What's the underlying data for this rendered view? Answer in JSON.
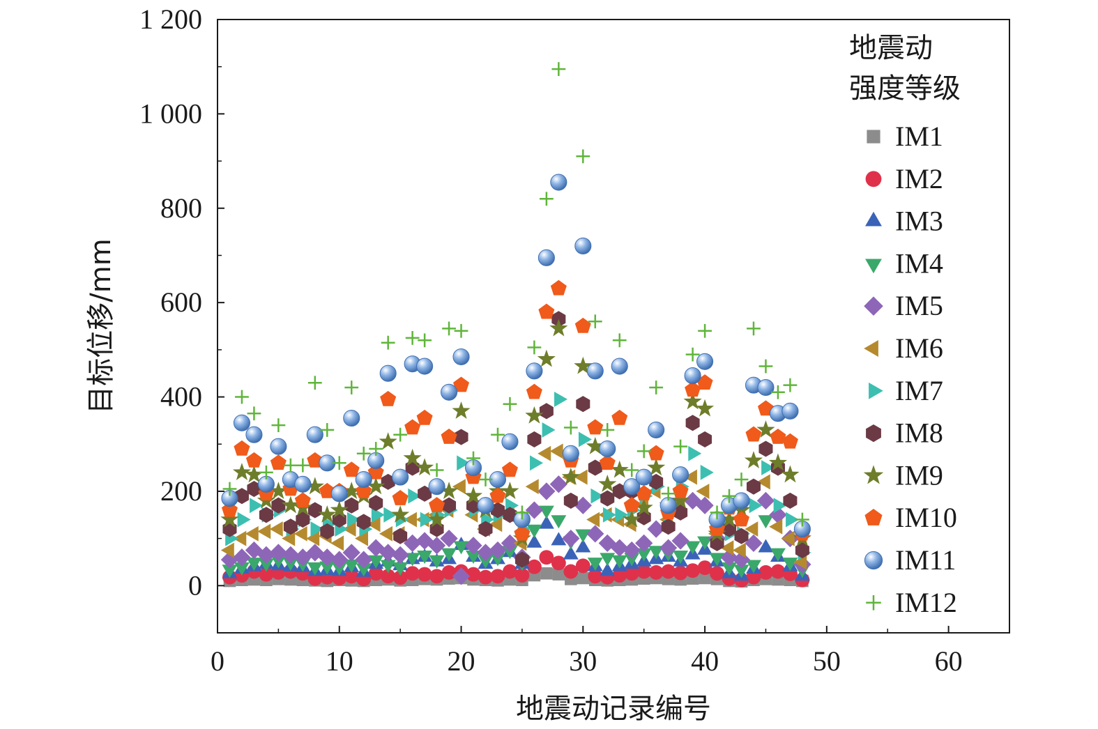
{
  "chart_data": {
    "type": "scatter",
    "title": "",
    "xlabel": "地震动记录编号",
    "ylabel": "目标位移/mm",
    "xlim": [
      0,
      65
    ],
    "ylim": [
      -100,
      1200
    ],
    "xticks": [
      0,
      10,
      20,
      30,
      40,
      50,
      60
    ],
    "yticks": [
      0,
      200,
      400,
      600,
      800,
      1000,
      1200
    ],
    "ytick_labels": [
      "0",
      "200",
      "400",
      "600",
      "800",
      "1 000",
      "1 200"
    ],
    "grid": false,
    "legend": {
      "title_lines": [
        "地震动",
        "强度等级"
      ],
      "placement": "right"
    },
    "x": [
      1,
      2,
      3,
      4,
      5,
      6,
      7,
      8,
      9,
      10,
      11,
      12,
      13,
      14,
      15,
      16,
      17,
      18,
      19,
      20,
      21,
      22,
      23,
      24,
      25,
      26,
      27,
      28,
      29,
      30,
      31,
      32,
      33,
      34,
      35,
      36,
      37,
      38,
      39,
      40,
      41,
      42,
      43,
      44,
      45,
      46,
      47,
      48
    ],
    "series": [
      {
        "name": "IM1",
        "marker": "square",
        "color": "#8c8c8c",
        "values": [
          10,
          12,
          13,
          12,
          14,
          13,
          12,
          11,
          10,
          12,
          11,
          10,
          12,
          13,
          11,
          12,
          14,
          13,
          15,
          16,
          13,
          12,
          11,
          13,
          12,
          22,
          26,
          24,
          14,
          16,
          12,
          11,
          12,
          13,
          15,
          16,
          14,
          13,
          15,
          16,
          14,
          10,
          9,
          12,
          14,
          13,
          12,
          10
        ]
      },
      {
        "name": "IM2",
        "marker": "circle",
        "color": "#e0314b",
        "values": [
          18,
          22,
          30,
          24,
          28,
          30,
          26,
          15,
          18,
          16,
          20,
          14,
          26,
          20,
          17,
          26,
          24,
          20,
          28,
          30,
          24,
          18,
          20,
          30,
          22,
          40,
          60,
          48,
          30,
          42,
          20,
          18,
          22,
          26,
          30,
          28,
          30,
          27,
          32,
          38,
          26,
          15,
          12,
          18,
          28,
          30,
          25,
          12
        ]
      },
      {
        "name": "IM3",
        "marker": "triangle-up",
        "color": "#3a63b8",
        "values": [
          25,
          35,
          40,
          45,
          42,
          40,
          38,
          30,
          32,
          30,
          38,
          28,
          45,
          50,
          42,
          55,
          60,
          50,
          55,
          85,
          60,
          45,
          55,
          70,
          45,
          90,
          130,
          95,
          65,
          80,
          40,
          30,
          40,
          45,
          50,
          55,
          60,
          50,
          65,
          75,
          50,
          25,
          20,
          35,
          80,
          60,
          40,
          20
        ]
      },
      {
        "name": "IM4",
        "marker": "triangle-down",
        "color": "#3aa86a",
        "values": [
          35,
          40,
          50,
          48,
          55,
          50,
          48,
          40,
          42,
          40,
          46,
          38,
          55,
          45,
          40,
          60,
          65,
          55,
          70,
          85,
          65,
          55,
          60,
          75,
          50,
          120,
          160,
          140,
          95,
          110,
          50,
          60,
          55,
          60,
          70,
          75,
          70,
          65,
          85,
          95,
          60,
          40,
          35,
          45,
          140,
          70,
          50,
          35
        ]
      },
      {
        "name": "IM5",
        "marker": "diamond",
        "color": "#8e66b8",
        "values": [
          55,
          60,
          75,
          65,
          70,
          65,
          60,
          70,
          60,
          55,
          70,
          55,
          80,
          70,
          65,
          90,
          95,
          85,
          100,
          20,
          85,
          70,
          75,
          90,
          60,
          160,
          200,
          215,
          100,
          170,
          110,
          90,
          80,
          75,
          90,
          120,
          80,
          95,
          180,
          170,
          100,
          60,
          55,
          90,
          180,
          150,
          100,
          45
        ]
      },
      {
        "name": "IM6",
        "marker": "triangle-left",
        "color": "#b58a2e",
        "values": [
          75,
          100,
          110,
          115,
          120,
          100,
          110,
          100,
          105,
          90,
          120,
          100,
          130,
          110,
          110,
          140,
          140,
          150,
          160,
          210,
          150,
          120,
          130,
          150,
          90,
          210,
          280,
          285,
          230,
          230,
          140,
          150,
          140,
          130,
          170,
          200,
          140,
          180,
          230,
          200,
          110,
          80,
          75,
          120,
          220,
          125,
          100,
          50
        ]
      },
      {
        "name": "IM7",
        "marker": "triangle-right",
        "color": "#3cbfb0",
        "values": [
          100,
          140,
          170,
          150,
          160,
          120,
          140,
          120,
          130,
          120,
          140,
          120,
          150,
          150,
          140,
          190,
          140,
          150,
          160,
          260,
          160,
          140,
          150,
          170,
          120,
          260,
          330,
          395,
          280,
          310,
          190,
          150,
          150,
          160,
          190,
          210,
          150,
          210,
          280,
          240,
          130,
          110,
          110,
          170,
          250,
          170,
          140,
          70
        ]
      },
      {
        "name": "IM8",
        "marker": "hexagon",
        "color": "#6b3a45",
        "values": [
          120,
          190,
          205,
          150,
          170,
          125,
          140,
          160,
          115,
          140,
          170,
          135,
          175,
          220,
          105,
          250,
          195,
          120,
          170,
          315,
          170,
          120,
          160,
          150,
          55,
          310,
          370,
          565,
          180,
          385,
          250,
          185,
          200,
          200,
          145,
          220,
          125,
          155,
          345,
          310,
          90,
          120,
          105,
          210,
          290,
          250,
          180,
          75
        ]
      },
      {
        "name": "IM9",
        "marker": "star",
        "color": "#6e7d2a",
        "values": [
          140,
          240,
          235,
          180,
          200,
          170,
          165,
          210,
          150,
          160,
          200,
          190,
          210,
          305,
          150,
          270,
          250,
          140,
          200,
          370,
          190,
          160,
          200,
          200,
          100,
          360,
          480,
          545,
          230,
          465,
          295,
          215,
          245,
          140,
          165,
          250,
          170,
          180,
          390,
          375,
          110,
          140,
          160,
          265,
          330,
          260,
          235,
          100
        ]
      },
      {
        "name": "IM10",
        "marker": "pentagon",
        "color": "#f05a1a",
        "values": [
          160,
          290,
          265,
          195,
          260,
          205,
          180,
          265,
          200,
          200,
          245,
          200,
          240,
          395,
          185,
          335,
          355,
          170,
          315,
          425,
          230,
          170,
          190,
          245,
          110,
          410,
          580,
          630,
          265,
          550,
          335,
          260,
          355,
          170,
          195,
          280,
          155,
          200,
          415,
          430,
          120,
          165,
          140,
          320,
          375,
          315,
          305,
          110
        ]
      },
      {
        "name": "IM11",
        "marker": "sphere",
        "color": "#5b8ed0",
        "values": [
          185,
          345,
          320,
          215,
          295,
          225,
          215,
          320,
          260,
          195,
          355,
          225,
          265,
          450,
          230,
          470,
          465,
          210,
          410,
          485,
          250,
          170,
          225,
          305,
          140,
          455,
          695,
          855,
          280,
          720,
          455,
          290,
          465,
          210,
          230,
          330,
          170,
          235,
          445,
          475,
          140,
          170,
          180,
          425,
          420,
          365,
          370,
          120
        ]
      },
      {
        "name": "IM12",
        "marker": "plus",
        "color": "#5fb53a",
        "values": [
          205,
          400,
          365,
          240,
          340,
          255,
          255,
          430,
          330,
          260,
          420,
          280,
          290,
          515,
          320,
          525,
          520,
          245,
          545,
          540,
          270,
          225,
          320,
          385,
          155,
          505,
          820,
          1095,
          335,
          910,
          560,
          330,
          520,
          245,
          285,
          420,
          195,
          295,
          490,
          540,
          155,
          190,
          225,
          545,
          465,
          410,
          425,
          140
        ]
      }
    ]
  }
}
